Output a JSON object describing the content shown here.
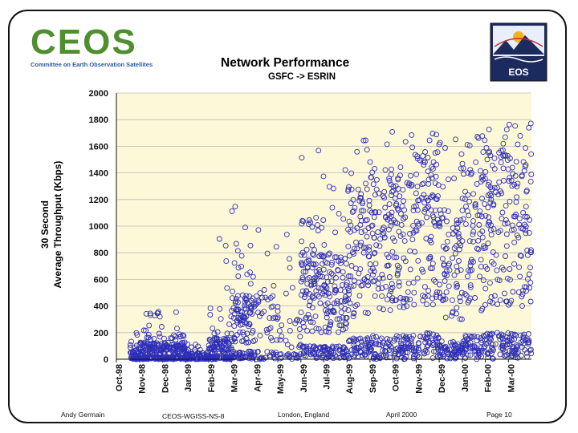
{
  "logos": {
    "ceos_word": "CEOS",
    "ceos_subtitle": "Committee on Earth Observation Satellites",
    "eos_word": "EOS"
  },
  "colors": {
    "plot_background": "#fdf8d8",
    "marker": "#2e2fb8",
    "grid": "#bbbbbb"
  },
  "chart_data": {
    "type": "scatter",
    "title": "Network Performance",
    "subtitle": "GSFC -> ESRIN",
    "ylabel_line1": "30 Second",
    "ylabel_line2": "Average Throughput (Kbps)",
    "xlabel": "",
    "ylim": [
      0,
      2000
    ],
    "yticks": [
      0,
      200,
      400,
      600,
      800,
      1000,
      1200,
      1400,
      1600,
      1800,
      2000
    ],
    "xtick_labels": [
      "Oct-98",
      "Nov-98",
      "Dec-98",
      "Jan-99",
      "Feb-99",
      "Mar-99",
      "Apr-99",
      "May-99",
      "Jun-99",
      "Jul-99",
      "Aug-99",
      "Sep-99",
      "Oct-99",
      "Nov-99",
      "Dec-99",
      "Jan-00",
      "Feb-00",
      "Mar-00"
    ],
    "grid": "horizontal",
    "marker": "open-circle",
    "month_profiles": [
      {
        "month": "Oct-98",
        "median": 40,
        "p90": 150,
        "max": 220,
        "coverage": 0.4
      },
      {
        "month": "Nov-98",
        "median": 80,
        "p90": 250,
        "max": 370,
        "coverage": 1.0
      },
      {
        "month": "Dec-98",
        "median": 80,
        "p90": 200,
        "max": 360,
        "coverage": 1.0
      },
      {
        "month": "Jan-99",
        "median": 30,
        "p90": 120,
        "max": 1000,
        "coverage": 0.6
      },
      {
        "month": "Feb-99",
        "median": 100,
        "p90": 400,
        "max": 1200,
        "coverage": 1.0
      },
      {
        "month": "Mar-99",
        "median": 300,
        "p90": 900,
        "max": 1300,
        "coverage": 1.0
      },
      {
        "month": "Apr-99",
        "median": 300,
        "p90": 900,
        "max": 1550,
        "coverage": 0.4
      },
      {
        "month": "May-99",
        "median": 200,
        "p90": 700,
        "max": 1180,
        "coverage": 0.3
      },
      {
        "month": "Jun-99",
        "median": 500,
        "p90": 1100,
        "max": 1650,
        "coverage": 1.0
      },
      {
        "month": "Jul-99",
        "median": 500,
        "p90": 1200,
        "max": 1680,
        "coverage": 1.0
      },
      {
        "month": "Aug-99",
        "median": 800,
        "p90": 1400,
        "max": 1700,
        "coverage": 1.0
      },
      {
        "month": "Sep-99",
        "median": 900,
        "p90": 1450,
        "max": 1760,
        "coverage": 1.0
      },
      {
        "month": "Oct-99",
        "median": 900,
        "p90": 1450,
        "max": 1700,
        "coverage": 1.0
      },
      {
        "month": "Nov-99",
        "median": 1000,
        "p90": 1600,
        "max": 1700,
        "coverage": 1.0
      },
      {
        "month": "Dec-99",
        "median": 700,
        "p90": 1400,
        "max": 1680,
        "coverage": 1.0
      },
      {
        "month": "Jan-00",
        "median": 900,
        "p90": 1600,
        "max": 1700,
        "coverage": 1.0
      },
      {
        "month": "Feb-00",
        "median": 1000,
        "p90": 1650,
        "max": 1780,
        "coverage": 1.0
      },
      {
        "month": "Mar-00",
        "median": 1000,
        "p90": 1700,
        "max": 1800,
        "coverage": 1.0
      }
    ]
  },
  "footer": {
    "author": "Andy Germain",
    "doc_id": "CEOS-WGISS-NS-8",
    "location": "London, England",
    "date": "April 2000",
    "page": "Page 10"
  }
}
